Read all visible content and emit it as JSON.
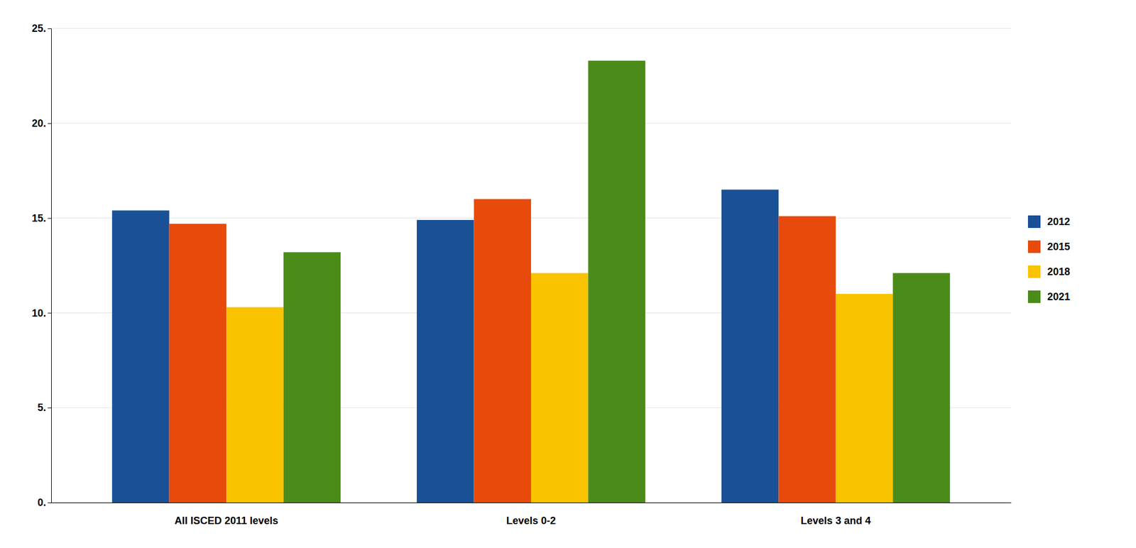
{
  "chart_data": {
    "type": "bar",
    "categories": [
      "All ISCED 2011 levels",
      "Levels 0-2",
      "Levels 3 and 4"
    ],
    "series": [
      {
        "name": "2012",
        "color": "#1A5096",
        "values": [
          15.4,
          14.9,
          16.5
        ]
      },
      {
        "name": "2015",
        "color": "#E84A0C",
        "values": [
          14.7,
          16.0,
          15.1
        ]
      },
      {
        "name": "2018",
        "color": "#F9C300",
        "values": [
          10.3,
          12.1,
          11.0
        ]
      },
      {
        "name": "2021",
        "color": "#4B8B1A",
        "values": [
          13.2,
          23.3,
          12.1
        ]
      }
    ],
    "ylim": [
      0,
      25
    ],
    "yticks": [
      {
        "value": 0,
        "label": "0."
      },
      {
        "value": 5,
        "label": "5."
      },
      {
        "value": 10,
        "label": "10."
      },
      {
        "value": 15,
        "label": "15."
      },
      {
        "value": 20,
        "label": "20."
      },
      {
        "value": 25,
        "label": "25."
      }
    ],
    "grid": true,
    "legend": "right"
  }
}
